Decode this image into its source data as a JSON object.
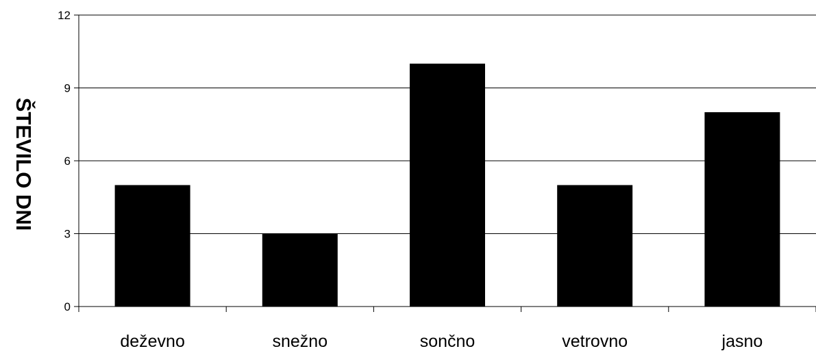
{
  "chart_data": {
    "type": "bar",
    "categories": [
      "deževno",
      "snežno",
      "sončno",
      "vetrovno",
      "jasno"
    ],
    "values": [
      5,
      3,
      10,
      5,
      8
    ],
    "title": "",
    "xlabel": "",
    "ylabel": "ŠTEVILO DNI",
    "ylim": [
      0,
      12
    ],
    "yticks": [
      0,
      3,
      6,
      9,
      12
    ],
    "grid": true,
    "colors": {
      "bar": "#000000",
      "grid": "#000000",
      "background": "#ffffff"
    }
  }
}
